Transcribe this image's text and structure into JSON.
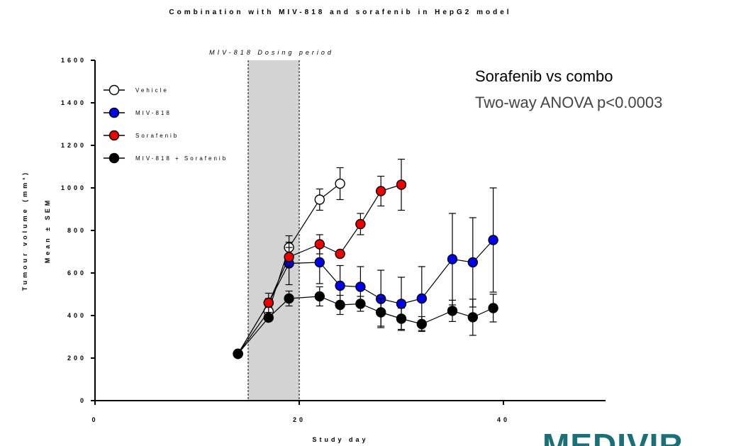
{
  "chart_data": {
    "type": "line",
    "title": "Combination with MIV-818 and sorafenib in HepG2 model",
    "xlabel": "Study day",
    "ylabel_line1": "Tumour volume (mm³)",
    "ylabel_line2": "Mean ± SEM",
    "xlim": [
      0,
      50
    ],
    "ylim": [
      0,
      1600
    ],
    "x_ticks": [
      0,
      20,
      40
    ],
    "y_ticks": [
      0,
      200,
      400,
      600,
      800,
      1000,
      1200,
      1400,
      1600
    ],
    "dosing_period": {
      "label": "MIV-818 Dosing period",
      "x_start": 15,
      "x_end": 20
    },
    "annotation": {
      "line1": "Sorafenib vs combo",
      "line2": "Two-way ANOVA p<0.0003"
    },
    "legend_position": "top-left",
    "series": [
      {
        "name": "Vehicle",
        "color": "#ffffff",
        "x": [
          14,
          17,
          19,
          22,
          24
        ],
        "y": [
          220,
          420,
          720,
          945,
          1020
        ],
        "err": [
          0,
          20,
          55,
          50,
          75
        ]
      },
      {
        "name": "MIV-818",
        "color": "#0000ee",
        "x": [
          14,
          17,
          19,
          22,
          24,
          26,
          28,
          30,
          32,
          35,
          37,
          39
        ],
        "y": [
          220,
          460,
          645,
          650,
          540,
          535,
          478,
          455,
          480,
          665,
          650,
          755
        ],
        "err": [
          0,
          45,
          100,
          100,
          95,
          95,
          135,
          125,
          150,
          215,
          210,
          245
        ]
      },
      {
        "name": "Sorafenib",
        "color": "#ee0000",
        "x": [
          14,
          17,
          19,
          22,
          24,
          26,
          28,
          30
        ],
        "y": [
          220,
          460,
          675,
          735,
          690,
          830,
          985,
          1015
        ],
        "err": [
          0,
          20,
          45,
          45,
          0,
          50,
          70,
          120
        ]
      },
      {
        "name": "MIV-818 + Sorafenib",
        "color": "#000000",
        "x": [
          14,
          17,
          19,
          22,
          24,
          26,
          28,
          30,
          32,
          35,
          37,
          39
        ],
        "y": [
          220,
          390,
          480,
          490,
          450,
          455,
          415,
          385,
          360,
          422,
          392,
          435
        ],
        "err": [
          0,
          15,
          35,
          45,
          45,
          35,
          65,
          50,
          35,
          50,
          85,
          65
        ]
      }
    ]
  },
  "logo_text": "MEDIVIR"
}
